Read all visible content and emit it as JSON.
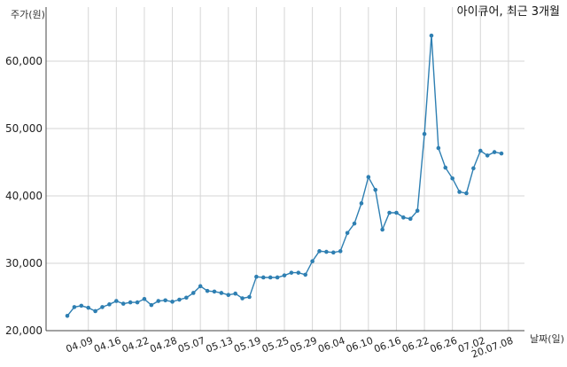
{
  "chart_data": {
    "type": "line",
    "title": "아이큐어, 최근 3개월",
    "xlabel": "날짜(일)",
    "ylabel": "주가(원)",
    "ylim": [
      20000,
      66000
    ],
    "yticks": [
      20000,
      30000,
      40000,
      50000,
      60000
    ],
    "ytick_labels": [
      "20,000",
      "30,000",
      "40,000",
      "50,000",
      "60,000"
    ],
    "xtick_labels": [
      "04.09",
      "04.16",
      "04.22",
      "04.28",
      "05.07",
      "05.13",
      "05.19",
      "05.25",
      "05.29",
      "06.04",
      "06.10",
      "06.16",
      "06.22",
      "06.26",
      "07.02",
      "20.07.08"
    ],
    "xtick_index": [
      3,
      7,
      11,
      15,
      19,
      23,
      27,
      31,
      35,
      39,
      43,
      47,
      51,
      55,
      59,
      63
    ],
    "grid": "vertical and horizontal",
    "line_color": "#2e7fb2",
    "series": [
      {
        "values": [
          22200,
          23500,
          23700,
          23400,
          22900,
          23500,
          23900,
          24400,
          24000,
          24200,
          24200,
          24700,
          23800,
          24400,
          24500,
          24300,
          24600,
          24900,
          25600,
          26600,
          25900,
          25800,
          25600,
          25300,
          25500,
          24800,
          25000,
          28000,
          27900,
          27900,
          27900,
          28200,
          28600,
          28600,
          28300,
          30300,
          31800,
          31700,
          31600,
          31800,
          34500,
          35900,
          38900,
          42800,
          40900,
          35000,
          37500,
          37500,
          36800,
          36600,
          37800,
          49200,
          63800,
          47100,
          44200,
          42600,
          40600,
          40400,
          44100,
          46700,
          46000,
          46500,
          46300
        ]
      }
    ]
  }
}
